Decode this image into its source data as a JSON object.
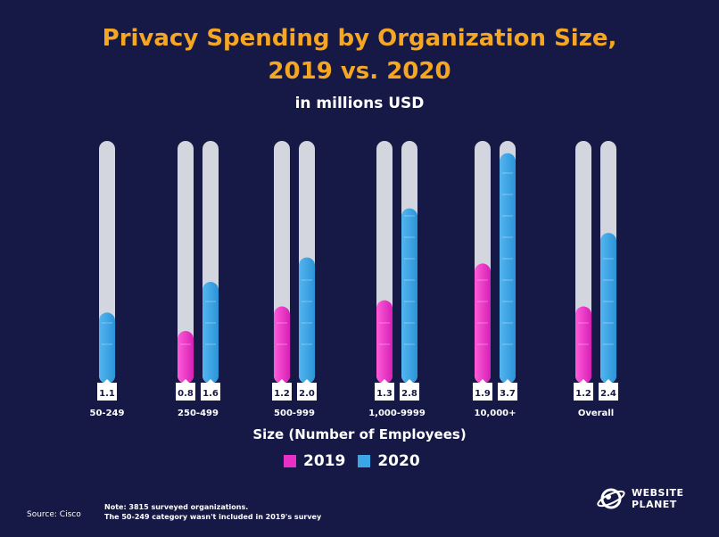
{
  "title_line1": "Privacy Spending by Organization Size,",
  "title_line2": "2019 vs. 2020",
  "subtitle": "in millions USD",
  "legend": [
    {
      "label": "2019",
      "color": "#e82fc8"
    },
    {
      "label": "2020",
      "color": "#3aa6e6"
    }
  ],
  "note_line1": "Note: 3815 surveyed organizations.",
  "note_line2": "The 50-249 category wasn't included in 2019's survey",
  "source": "Source: Cisco",
  "logo": {
    "line1": "WEBSITE",
    "line2": "PLANET",
    "icon": "planet-icon"
  },
  "chart_data": {
    "type": "bar",
    "title": "Privacy Spending by Organization Size, 2019 vs. 2020",
    "subtitle": "in millions USD",
    "xlabel": "Size (Number of Employees)",
    "ylabel": "",
    "ylim": [
      0,
      3.9
    ],
    "grid": false,
    "legend_position": "bottom",
    "categories": [
      "50-249",
      "250-499",
      "500-999",
      "1,000-9999",
      "10,000+",
      "Overall"
    ],
    "series": [
      {
        "name": "2019",
        "color": "#e82fc8",
        "values": [
          null,
          0.8,
          1.2,
          1.3,
          1.9,
          1.2
        ]
      },
      {
        "name": "2020",
        "color": "#3aa6e6",
        "values": [
          1.1,
          1.6,
          2.0,
          2.8,
          3.7,
          2.4
        ]
      }
    ],
    "value_labels": [
      [
        "1.1"
      ],
      [
        "0.8",
        "1.6"
      ],
      [
        "1.2",
        "2.0"
      ],
      [
        "1.3",
        "2.8"
      ],
      [
        "1.9",
        "3.7"
      ],
      [
        "1.2",
        "2.4"
      ]
    ]
  }
}
